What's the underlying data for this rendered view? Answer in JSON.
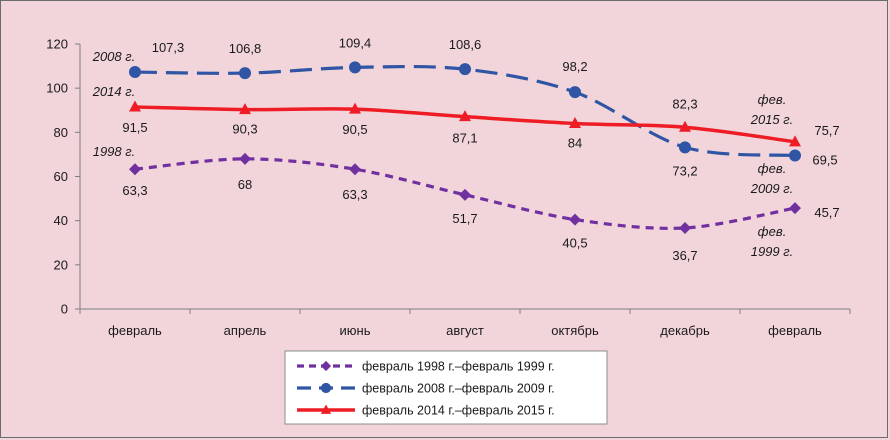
{
  "chart_data": {
    "type": "line",
    "categories": [
      "февраль",
      "апрель",
      "июнь",
      "август",
      "октябрь",
      "декабрь",
      "февраль"
    ],
    "ylim": [
      0,
      120
    ],
    "yticks": [
      0,
      20,
      40,
      60,
      80,
      100,
      120
    ],
    "grid": false,
    "legend_position": "bottom-center",
    "series": [
      {
        "name": "февраль 1998 г.–февраль 1999 г.",
        "values": [
          63.3,
          68,
          63.3,
          51.7,
          40.5,
          36.7,
          45.7
        ],
        "labels": [
          "63,3",
          "68",
          "63,3",
          "51,7",
          "40,5",
          "36,7",
          "45,7"
        ],
        "color": "#7030a0",
        "marker": "diamond",
        "dash": "dash",
        "start_label": "1998 г.",
        "end_label": [
          "фев.",
          "1999 г."
        ]
      },
      {
        "name": "февраль 2008 г.–февраль 2009 г.",
        "values": [
          107.3,
          106.8,
          109.4,
          108.6,
          98.2,
          73.2,
          69.5
        ],
        "labels": [
          "107,3",
          "106,8",
          "109,4",
          "108,6",
          "98,2",
          "73,2",
          "69,5"
        ],
        "color": "#2f55a4",
        "marker": "circle",
        "dash": "longdash",
        "start_label": "2008 г.",
        "end_label": [
          "фев.",
          "2009 г."
        ]
      },
      {
        "name": "февраль 2014 г.–февраль 2015 г.",
        "values": [
          91.5,
          90.3,
          90.5,
          87.1,
          84,
          82.3,
          75.7
        ],
        "labels": [
          "91,5",
          "90,3",
          "90,5",
          "87,1",
          "84",
          "82,3",
          "75,7"
        ],
        "color": "#ee1c24",
        "marker": "triangle",
        "dash": "solid",
        "start_label": "2014 г.",
        "end_label": [
          "фев.",
          "2015 г."
        ]
      }
    ]
  }
}
